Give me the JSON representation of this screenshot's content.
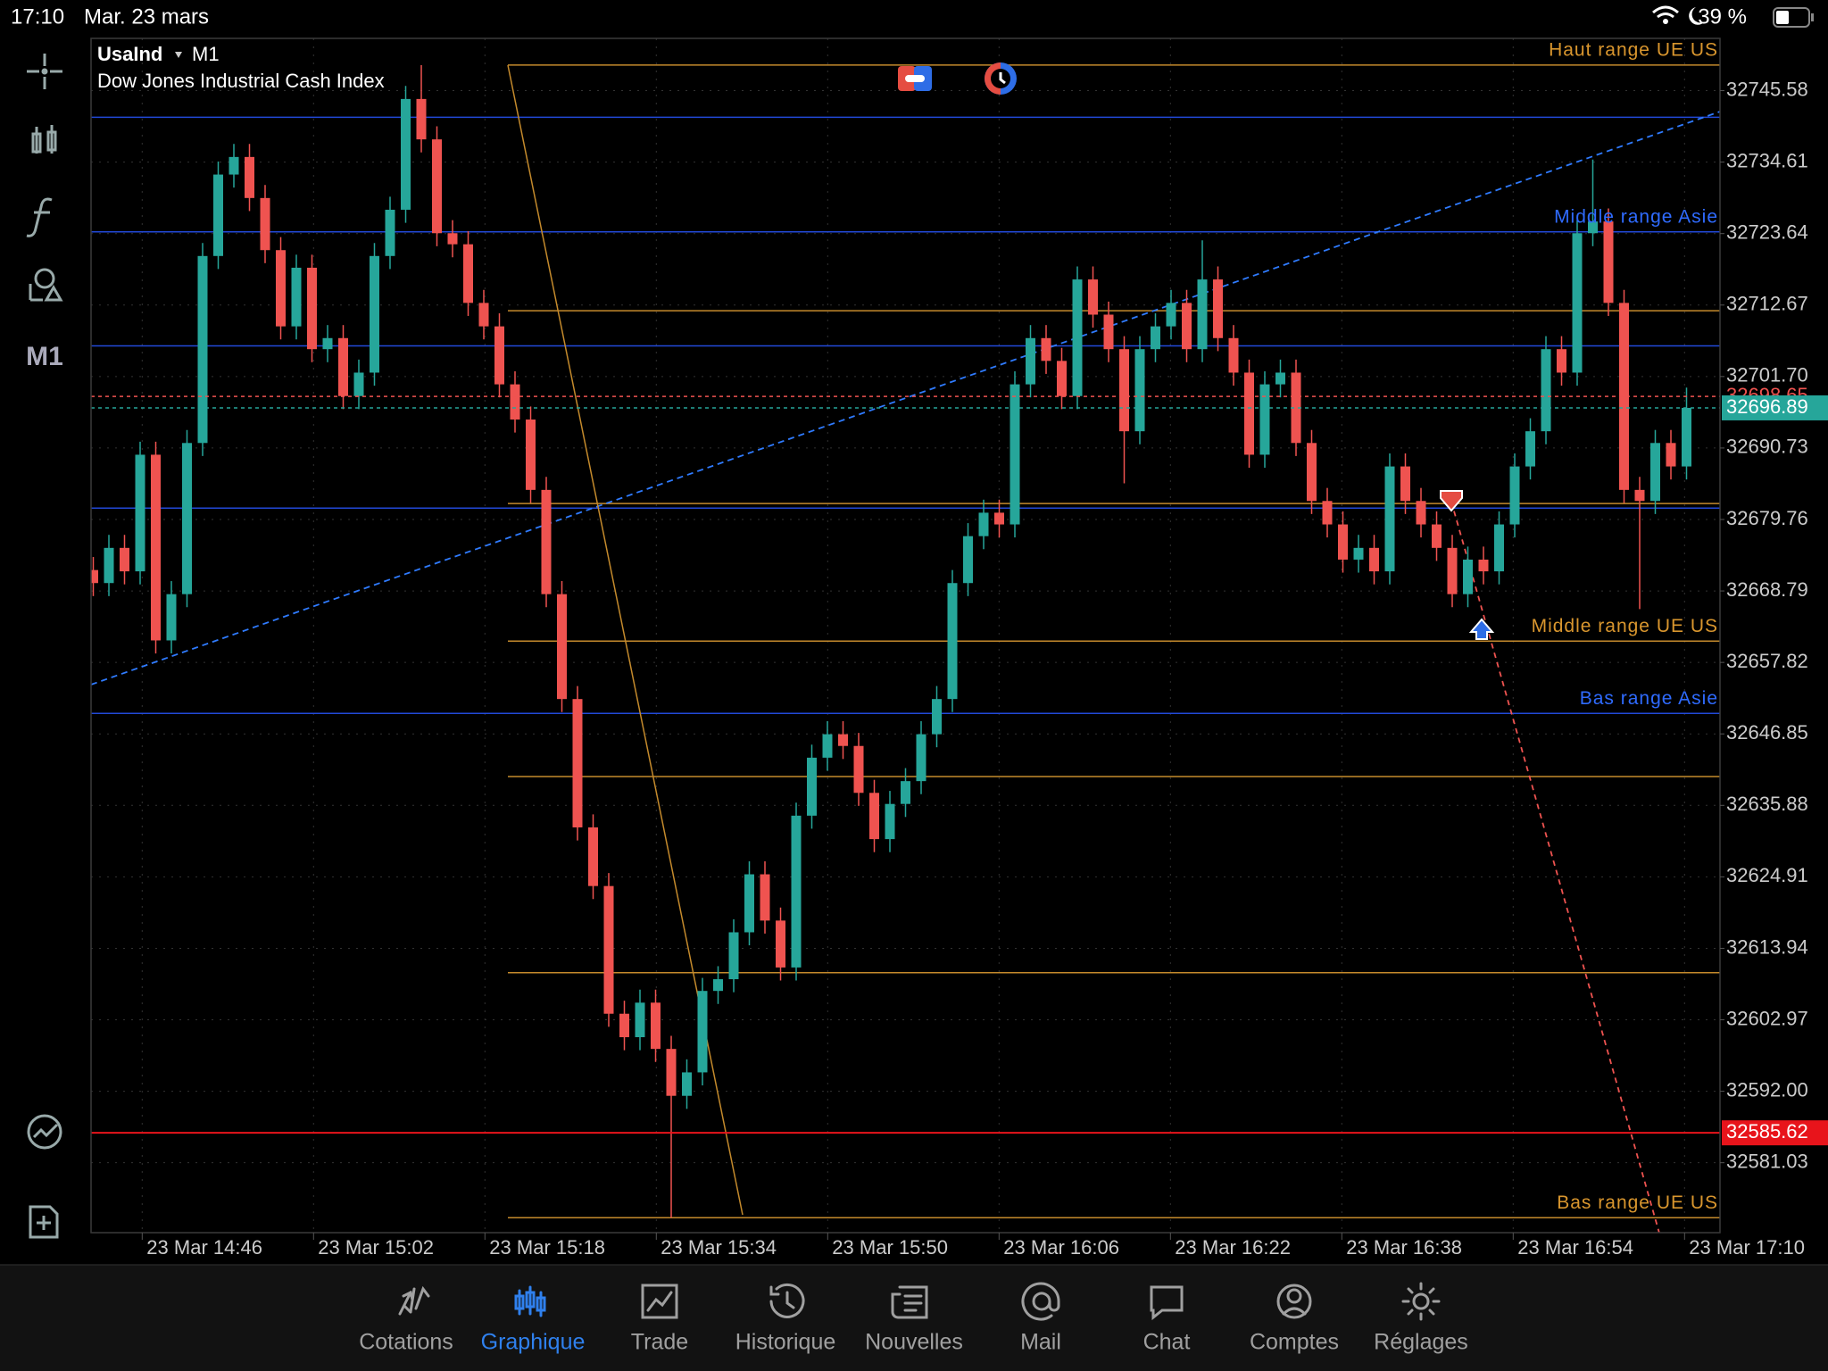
{
  "status_bar": {
    "time": "17:10",
    "date": "Mar. 23 mars",
    "battery": "39 %"
  },
  "toolbar": {
    "timeframe": "M1"
  },
  "chart_data": {
    "type": "candlestick",
    "symbol": "UsaInd",
    "timeframe": "M1",
    "title": "Dow Jones Industrial Cash Index",
    "up_color": "#26a69a",
    "down_color": "#ef5350",
    "grid": true,
    "ylim": [
      32570.3,
      32753.6
    ],
    "yticks": [
      32745.58,
      32734.61,
      32723.64,
      32712.67,
      {
        "value": 32701.7,
        "label": "32701.70"
      },
      32690.73,
      32679.76,
      32668.79,
      32657.82,
      32646.85,
      32635.88,
      32624.91,
      32613.94,
      32602.97,
      {
        "value": 32592,
        "label": "32592.00"
      },
      32581.03
    ],
    "xticks": [
      "23 Mar 14:46",
      "23 Mar 15:02",
      "23 Mar 15:18",
      "23 Mar 15:34",
      "23 Mar 15:50",
      "23 Mar 16:06",
      "23 Mar 16:22",
      "23 Mar 16:38",
      "23 Mar 16:54",
      "23 Mar 17:10"
    ],
    "levels": [
      {
        "price": 32741.5,
        "color": "#2249d8"
      },
      {
        "price": 32723.9,
        "color": "#2249d8",
        "label": "Middle range Asie"
      },
      {
        "price": 32706.4,
        "color": "#2249d8"
      },
      {
        "price": 32681.5,
        "color": "#2249d8"
      },
      {
        "price": 32650.0,
        "color": "#2249d8",
        "label": "Bas range Asie"
      },
      {
        "price": 32749.5,
        "color": "#c48a2c",
        "label": "Haut range UE US"
      },
      {
        "price": 32711.8,
        "color": "#c48a2c"
      },
      {
        "price": 32682.2,
        "color": "#c48a2c"
      },
      {
        "price": 32661.1,
        "color": "#c48a2c",
        "label": "Middle range UE US"
      },
      {
        "price": 32640.3,
        "color": "#c48a2c"
      },
      {
        "price": 32610.2,
        "color": "#c48a2c"
      },
      {
        "price": 32572.6,
        "color": "#c48a2c",
        "label": "Bas range UE US"
      }
    ],
    "price_lines": [
      {
        "value": 32698.65,
        "color": "#ef5350",
        "style": "dashed"
      },
      {
        "value": 32696.89,
        "color": "#26a69a",
        "style": "dashed"
      },
      {
        "value": 32585.62,
        "color": "#e8141b",
        "style": "solid"
      }
    ],
    "candles": [
      [
        32672.0,
        32674.0,
        32668.0,
        32670.0
      ],
      [
        32670.0,
        32677.4,
        32668.0,
        32675.4
      ],
      [
        32675.4,
        32677.4,
        32669.8,
        32671.8
      ],
      [
        32671.8,
        32691.7,
        32669.8,
        32689.7
      ],
      [
        32689.7,
        32691.7,
        32659.2,
        32661.2
      ],
      [
        32661.2,
        32670.3,
        32659.2,
        32668.3
      ],
      [
        32668.3,
        32693.5,
        32666.3,
        32691.5
      ],
      [
        32691.5,
        32722.2,
        32689.5,
        32720.2
      ],
      [
        32720.2,
        32734.7,
        32718.2,
        32732.7
      ],
      [
        32732.7,
        32737.4,
        32730.7,
        32735.4
      ],
      [
        32735.4,
        32737.4,
        32727.1,
        32729.1
      ],
      [
        32729.1,
        32731.1,
        32719.1,
        32721.1
      ],
      [
        32721.1,
        32723.1,
        32707.4,
        32709.4
      ],
      [
        32709.4,
        32720.4,
        32707.4,
        32718.4
      ],
      [
        32718.4,
        32720.4,
        32703.9,
        32705.9
      ],
      [
        32705.9,
        32709.6,
        32703.9,
        32707.6
      ],
      [
        32707.6,
        32709.6,
        32696.7,
        32698.7
      ],
      [
        32698.7,
        32704.3,
        32696.7,
        32702.3
      ],
      [
        32702.3,
        32722.2,
        32700.3,
        32720.2
      ],
      [
        32720.2,
        32729.3,
        32718.2,
        32727.3
      ],
      [
        32727.3,
        32746.3,
        32725.3,
        32744.3
      ],
      [
        32744.3,
        32749.5,
        32736.1,
        32738.1
      ],
      [
        32738.1,
        32740.1,
        32721.7,
        32723.7
      ],
      [
        32723.7,
        32725.7,
        32720.0,
        32722.0
      ],
      [
        32722.0,
        32724.0,
        32711.0,
        32713.0
      ],
      [
        32713.0,
        32715.0,
        32707.4,
        32709.4
      ],
      [
        32709.4,
        32711.4,
        32698.5,
        32700.5
      ],
      [
        32700.5,
        32702.5,
        32693.1,
        32695.1
      ],
      [
        32695.1,
        32697.1,
        32682.3,
        32684.3
      ],
      [
        32684.3,
        32686.3,
        32666.3,
        32668.3
      ],
      [
        32668.3,
        32670.3,
        32650.2,
        32652.2
      ],
      [
        32652.2,
        32654.2,
        32630.5,
        32632.5
      ],
      [
        32632.5,
        32634.5,
        32621.5,
        32623.5
      ],
      [
        32623.5,
        32625.5,
        32601.9,
        32603.9
      ],
      [
        32603.9,
        32605.9,
        32598.3,
        32600.3
      ],
      [
        32600.3,
        32607.6,
        32598.3,
        32605.6
      ],
      [
        32605.6,
        32607.6,
        32596.5,
        32598.5
      ],
      [
        32598.5,
        32600.5,
        32572.6,
        32591.3
      ],
      [
        32591.3,
        32596.9,
        32589.3,
        32594.9
      ],
      [
        32594.9,
        32609.4,
        32592.9,
        32607.4
      ],
      [
        32607.4,
        32611.2,
        32605.4,
        32609.2
      ],
      [
        32609.2,
        32618.4,
        32607.2,
        32616.4
      ],
      [
        32616.4,
        32627.3,
        32614.4,
        32625.3
      ],
      [
        32625.3,
        32627.3,
        32616.2,
        32618.2
      ],
      [
        32618.2,
        32620.2,
        32609.0,
        32611.0
      ],
      [
        32611.0,
        32636.3,
        32609.0,
        32634.3
      ],
      [
        32634.3,
        32645.2,
        32632.3,
        32643.2
      ],
      [
        32643.2,
        32648.8,
        32641.2,
        32646.8
      ],
      [
        32646.8,
        32648.8,
        32643.0,
        32645.0
      ],
      [
        32645.0,
        32647.0,
        32635.8,
        32637.8
      ],
      [
        32637.8,
        32639.8,
        32628.7,
        32630.7
      ],
      [
        32630.7,
        32638.1,
        32628.7,
        32636.1
      ],
      [
        32636.1,
        32641.6,
        32634.1,
        32639.6
      ],
      [
        32639.6,
        32648.8,
        32637.6,
        32646.8
      ],
      [
        32646.8,
        32654.2,
        32644.8,
        32652.2
      ],
      [
        32652.2,
        32672.0,
        32650.2,
        32670.0
      ],
      [
        32670.0,
        32679.2,
        32668.0,
        32677.2
      ],
      [
        32677.2,
        32682.8,
        32675.2,
        32680.8
      ],
      [
        32680.8,
        32682.8,
        32677.0,
        32679.0
      ],
      [
        32679.0,
        32702.5,
        32677.0,
        32700.5
      ],
      [
        32700.5,
        32709.6,
        32698.5,
        32707.6
      ],
      [
        32707.6,
        32709.6,
        32702.1,
        32704.1
      ],
      [
        32704.1,
        32706.1,
        32696.7,
        32698.7
      ],
      [
        32698.7,
        32718.6,
        32696.7,
        32716.6
      ],
      [
        32716.6,
        32718.6,
        32709.2,
        32711.2
      ],
      [
        32711.2,
        32713.2,
        32703.9,
        32705.9
      ],
      [
        32705.9,
        32707.9,
        32685.3,
        32693.3
      ],
      [
        32693.3,
        32707.9,
        32691.3,
        32705.9
      ],
      [
        32705.9,
        32711.4,
        32703.9,
        32709.4
      ],
      [
        32709.4,
        32715.0,
        32707.4,
        32713.0
      ],
      [
        32713.0,
        32715.0,
        32703.9,
        32705.9
      ],
      [
        32705.9,
        32722.6,
        32703.9,
        32716.6
      ],
      [
        32716.6,
        32718.6,
        32705.6,
        32707.6
      ],
      [
        32707.6,
        32709.6,
        32700.3,
        32702.3
      ],
      [
        32702.3,
        32704.3,
        32687.7,
        32689.7
      ],
      [
        32689.7,
        32702.5,
        32687.7,
        32700.5
      ],
      [
        32700.5,
        32704.3,
        32698.5,
        32702.3
      ],
      [
        32702.3,
        32704.3,
        32689.5,
        32691.5
      ],
      [
        32691.5,
        32693.5,
        32680.6,
        32682.6
      ],
      [
        32682.6,
        32684.6,
        32677.0,
        32679.0
      ],
      [
        32679.0,
        32681.0,
        32671.6,
        32673.6
      ],
      [
        32673.6,
        32677.4,
        32671.6,
        32675.4
      ],
      [
        32675.4,
        32677.4,
        32669.8,
        32671.8
      ],
      [
        32671.8,
        32689.9,
        32669.8,
        32687.9
      ],
      [
        32687.9,
        32689.9,
        32680.6,
        32682.6
      ],
      [
        32682.6,
        32684.6,
        32677.0,
        32679.0
      ],
      [
        32679.0,
        32681.0,
        32673.4,
        32675.4
      ],
      [
        32675.4,
        32677.4,
        32666.3,
        32668.3
      ],
      [
        32668.3,
        32675.6,
        32666.3,
        32673.6
      ],
      [
        32673.6,
        32675.6,
        32669.8,
        32671.8
      ],
      [
        32671.8,
        32681.0,
        32669.8,
        32679.0
      ],
      [
        32679.0,
        32689.9,
        32677.0,
        32687.9
      ],
      [
        32687.9,
        32695.3,
        32685.9,
        32693.3
      ],
      [
        32693.3,
        32707.9,
        32691.3,
        32705.9
      ],
      [
        32705.9,
        32707.9,
        32700.3,
        32702.3
      ],
      [
        32702.3,
        32725.7,
        32700.3,
        32723.7
      ],
      [
        32723.7,
        32735.0,
        32721.7,
        32725.5
      ],
      [
        32725.5,
        32727.5,
        32711.0,
        32713.0
      ],
      [
        32713.0,
        32715.0,
        32682.3,
        32684.3
      ],
      [
        32684.3,
        32686.3,
        32666.0,
        32682.6
      ],
      [
        32682.6,
        32693.5,
        32680.6,
        32691.5
      ],
      [
        32691.5,
        32693.5,
        32685.9,
        32687.9
      ],
      [
        32687.9,
        32700.0,
        32685.9,
        32696.89
      ]
    ]
  },
  "tab_bar": {
    "tabs": [
      "Cotations",
      "Graphique",
      "Trade",
      "Historique",
      "Nouvelles",
      "Mail",
      "Chat",
      "Comptes",
      "Réglages"
    ],
    "active": "Graphique"
  }
}
